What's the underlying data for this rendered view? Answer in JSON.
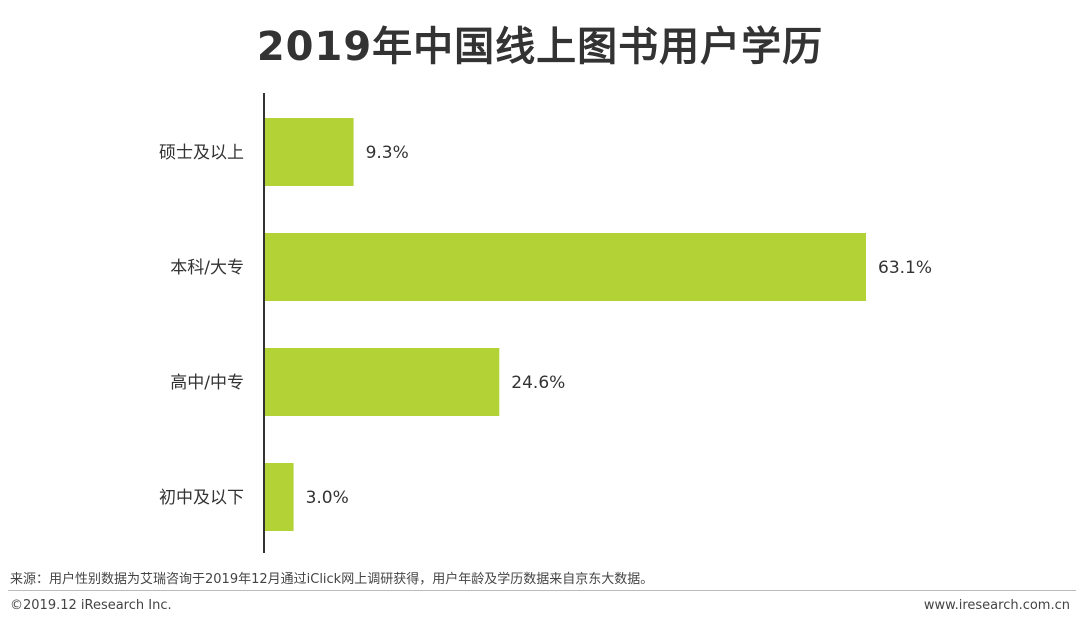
{
  "chart_data": {
    "type": "bar",
    "orientation": "horizontal",
    "title": "2019年中国线上图书用户学历",
    "categories": [
      "硕士及以上",
      "本科/大专",
      "高中/中专",
      "初中及以下"
    ],
    "values": [
      9.3,
      63.1,
      24.6,
      3.0
    ],
    "value_labels": [
      "9.3%",
      "63.1%",
      "24.6%",
      "3.0%"
    ],
    "unit": "%",
    "xlim": [
      0,
      63.1
    ],
    "grid": false,
    "legend": "none",
    "bar_color": "#b2d235",
    "axis_color": "#333333"
  },
  "footer": {
    "source": "来源：用户性别数据为艾瑞咨询于2019年12月通过iClick网上调研获得，用户年龄及学历数据来自京东大数据。",
    "copyright": "©2019.12 iResearch Inc.",
    "website": "www.iresearch.com.cn"
  }
}
